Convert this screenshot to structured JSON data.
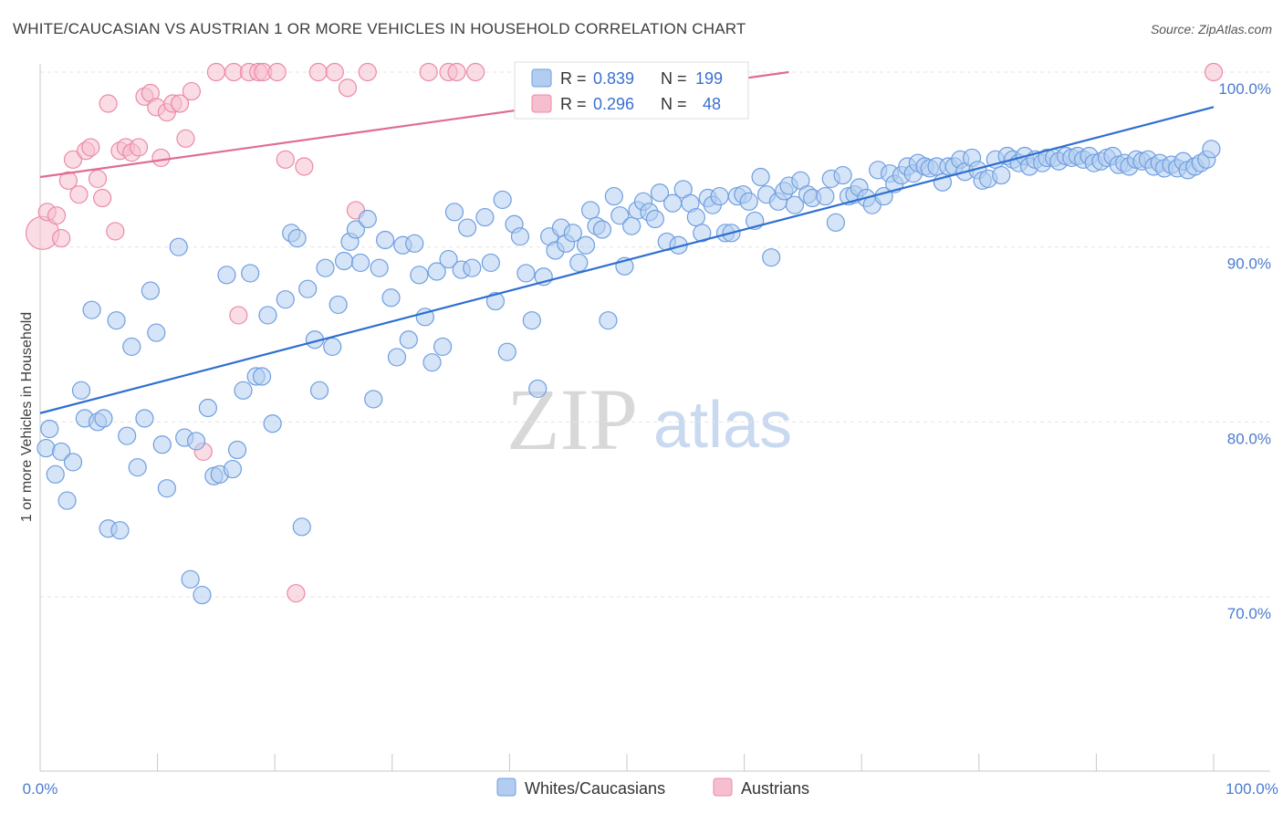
{
  "title": "WHITE/CAUCASIAN VS AUSTRIAN 1 OR MORE VEHICLES IN HOUSEHOLD CORRELATION CHART",
  "source": "Source: ZipAtlas.com",
  "watermark": {
    "zip": "ZIP",
    "atlas": "atlas"
  },
  "chart_data": {
    "type": "scatter",
    "title": "WHITE/CAUCASIAN VS AUSTRIAN 1 OR MORE VEHICLES IN HOUSEHOLD CORRELATION CHART",
    "ylabel": "1 or more Vehicles in Household",
    "xlabel": "",
    "xlim": [
      0,
      100
    ],
    "ylim": [
      60,
      102
    ],
    "x_tick_labels": [
      "0.0%",
      "100.0%"
    ],
    "y_tick_labels": [
      {
        "value": 100,
        "label": "100.0%"
      },
      {
        "value": 90,
        "label": "90.0%"
      },
      {
        "value": 80,
        "label": "80.0%"
      },
      {
        "value": 70,
        "label": "70.0%"
      }
    ],
    "grid": true,
    "legend_placement": "top-center",
    "legend": [
      {
        "r_label": "R =",
        "r": "0.839",
        "n_label": "N =",
        "n": "199"
      },
      {
        "r_label": "R =",
        "r": "0.296",
        "n_label": "N =",
        "n": "48"
      }
    ],
    "series": [
      {
        "name": "Whites/Caucasians",
        "color": "#6f9ee0",
        "fill": "#b3cdf0",
        "trend": {
          "x": [
            0,
            100
          ],
          "y": [
            80.5,
            98.0
          ],
          "color": "#2d6fd0"
        },
        "points": [
          [
            0.5,
            78.5
          ],
          [
            0.8,
            79.6
          ],
          [
            1.3,
            77.0
          ],
          [
            1.8,
            78.3
          ],
          [
            2.3,
            75.5
          ],
          [
            2.8,
            77.7
          ],
          [
            3.5,
            81.8
          ],
          [
            3.8,
            80.2
          ],
          [
            4.4,
            86.4
          ],
          [
            4.9,
            80.0
          ],
          [
            5.4,
            80.2
          ],
          [
            5.8,
            73.9
          ],
          [
            6.5,
            85.8
          ],
          [
            6.8,
            73.8
          ],
          [
            7.4,
            79.2
          ],
          [
            7.8,
            84.3
          ],
          [
            8.3,
            77.4
          ],
          [
            8.9,
            80.2
          ],
          [
            9.4,
            87.5
          ],
          [
            9.9,
            85.1
          ],
          [
            10.4,
            78.7
          ],
          [
            10.8,
            76.2
          ],
          [
            11.8,
            90.0
          ],
          [
            12.3,
            79.1
          ],
          [
            12.8,
            71.0
          ],
          [
            13.3,
            78.9
          ],
          [
            13.8,
            70.1
          ],
          [
            14.3,
            80.8
          ],
          [
            14.8,
            76.9
          ],
          [
            15.3,
            77.0
          ],
          [
            15.9,
            88.4
          ],
          [
            16.4,
            77.3
          ],
          [
            16.8,
            78.4
          ],
          [
            17.3,
            81.8
          ],
          [
            17.9,
            88.5
          ],
          [
            18.4,
            82.6
          ],
          [
            18.9,
            82.6
          ],
          [
            19.4,
            86.1
          ],
          [
            19.8,
            79.9
          ],
          [
            20.9,
            87.0
          ],
          [
            21.4,
            90.8
          ],
          [
            21.9,
            90.5
          ],
          [
            22.3,
            74.0
          ],
          [
            22.8,
            87.6
          ],
          [
            23.4,
            84.7
          ],
          [
            23.8,
            81.8
          ],
          [
            24.3,
            88.8
          ],
          [
            24.9,
            84.3
          ],
          [
            25.4,
            86.7
          ],
          [
            25.9,
            89.2
          ],
          [
            26.4,
            90.3
          ],
          [
            26.9,
            91.0
          ],
          [
            27.3,
            89.1
          ],
          [
            27.9,
            91.6
          ],
          [
            28.4,
            81.3
          ],
          [
            28.9,
            88.8
          ],
          [
            29.4,
            90.4
          ],
          [
            29.9,
            87.1
          ],
          [
            30.4,
            83.7
          ],
          [
            30.9,
            90.1
          ],
          [
            31.4,
            84.7
          ],
          [
            31.9,
            90.2
          ],
          [
            32.3,
            88.4
          ],
          [
            32.8,
            86.0
          ],
          [
            33.4,
            83.4
          ],
          [
            33.8,
            88.6
          ],
          [
            34.3,
            84.3
          ],
          [
            34.8,
            89.3
          ],
          [
            35.3,
            92.0
          ],
          [
            35.9,
            88.7
          ],
          [
            36.4,
            91.1
          ],
          [
            36.8,
            88.8
          ],
          [
            37.9,
            91.7
          ],
          [
            38.4,
            89.1
          ],
          [
            38.8,
            86.9
          ],
          [
            39.4,
            92.7
          ],
          [
            39.8,
            84.0
          ],
          [
            40.4,
            91.3
          ],
          [
            40.9,
            90.6
          ],
          [
            41.4,
            88.5
          ],
          [
            41.9,
            85.8
          ],
          [
            42.4,
            81.9
          ],
          [
            42.9,
            88.3
          ],
          [
            43.4,
            90.6
          ],
          [
            43.9,
            89.8
          ],
          [
            44.4,
            91.1
          ],
          [
            44.8,
            90.2
          ],
          [
            45.4,
            90.8
          ],
          [
            45.9,
            89.1
          ],
          [
            46.5,
            90.1
          ],
          [
            46.9,
            92.1
          ],
          [
            47.4,
            91.2
          ],
          [
            47.9,
            91.0
          ],
          [
            48.4,
            85.8
          ],
          [
            48.9,
            92.9
          ],
          [
            49.4,
            91.8
          ],
          [
            49.8,
            88.9
          ],
          [
            50.4,
            91.2
          ],
          [
            50.9,
            92.1
          ],
          [
            51.4,
            92.6
          ],
          [
            51.9,
            92.0
          ],
          [
            52.4,
            91.6
          ],
          [
            52.8,
            93.1
          ],
          [
            53.4,
            90.3
          ],
          [
            53.9,
            92.5
          ],
          [
            54.4,
            90.1
          ],
          [
            54.8,
            93.3
          ],
          [
            55.4,
            92.5
          ],
          [
            55.9,
            91.7
          ],
          [
            56.4,
            90.8
          ],
          [
            56.9,
            92.8
          ],
          [
            57.3,
            92.4
          ],
          [
            57.9,
            92.9
          ],
          [
            58.4,
            90.8
          ],
          [
            58.9,
            90.8
          ],
          [
            59.4,
            92.9
          ],
          [
            59.9,
            93.0
          ],
          [
            60.4,
            92.6
          ],
          [
            60.9,
            91.5
          ],
          [
            61.4,
            94.0
          ],
          [
            61.9,
            93.0
          ],
          [
            62.3,
            89.4
          ],
          [
            62.9,
            92.6
          ],
          [
            63.4,
            93.2
          ],
          [
            63.8,
            93.5
          ],
          [
            64.3,
            92.4
          ],
          [
            64.8,
            93.8
          ],
          [
            65.4,
            93.0
          ],
          [
            65.8,
            92.8
          ],
          [
            66.9,
            92.9
          ],
          [
            67.4,
            93.9
          ],
          [
            67.8,
            91.4
          ],
          [
            68.4,
            94.1
          ],
          [
            68.9,
            92.9
          ],
          [
            69.4,
            93.0
          ],
          [
            69.8,
            93.4
          ],
          [
            70.4,
            92.8
          ],
          [
            70.9,
            92.4
          ],
          [
            71.4,
            94.4
          ],
          [
            71.9,
            92.9
          ],
          [
            72.4,
            94.2
          ],
          [
            72.8,
            93.6
          ],
          [
            73.4,
            94.1
          ],
          [
            73.9,
            94.6
          ],
          [
            74.4,
            94.2
          ],
          [
            74.8,
            94.8
          ],
          [
            75.4,
            94.6
          ],
          [
            75.8,
            94.5
          ],
          [
            76.4,
            94.6
          ],
          [
            76.9,
            93.7
          ],
          [
            77.4,
            94.6
          ],
          [
            77.9,
            94.6
          ],
          [
            78.4,
            95.0
          ],
          [
            78.8,
            94.3
          ],
          [
            79.4,
            95.1
          ],
          [
            79.9,
            94.4
          ],
          [
            80.3,
            93.8
          ],
          [
            80.8,
            93.9
          ],
          [
            81.4,
            95.0
          ],
          [
            81.9,
            94.1
          ],
          [
            82.4,
            95.2
          ],
          [
            82.9,
            95.0
          ],
          [
            83.4,
            94.8
          ],
          [
            83.9,
            95.2
          ],
          [
            84.3,
            94.6
          ],
          [
            84.8,
            95.0
          ],
          [
            85.4,
            94.8
          ],
          [
            85.8,
            95.1
          ],
          [
            86.4,
            95.1
          ],
          [
            86.8,
            94.9
          ],
          [
            87.4,
            95.2
          ],
          [
            87.9,
            95.1
          ],
          [
            88.4,
            95.2
          ],
          [
            88.9,
            95.0
          ],
          [
            89.4,
            95.2
          ],
          [
            89.8,
            94.8
          ],
          [
            90.4,
            94.9
          ],
          [
            90.9,
            95.1
          ],
          [
            91.4,
            95.2
          ],
          [
            91.9,
            94.7
          ],
          [
            92.4,
            94.8
          ],
          [
            92.8,
            94.6
          ],
          [
            93.4,
            95.0
          ],
          [
            93.9,
            94.9
          ],
          [
            94.4,
            95.0
          ],
          [
            94.9,
            94.6
          ],
          [
            95.4,
            94.8
          ],
          [
            95.8,
            94.5
          ],
          [
            96.4,
            94.7
          ],
          [
            96.9,
            94.5
          ],
          [
            97.4,
            94.9
          ],
          [
            97.8,
            94.4
          ],
          [
            98.4,
            94.6
          ],
          [
            98.9,
            94.8
          ],
          [
            99.4,
            95.0
          ],
          [
            99.8,
            95.6
          ]
        ]
      },
      {
        "name": "Austrians",
        "color": "#eb8aa8",
        "fill": "#f6bfd0",
        "trend": {
          "x": [
            0,
            63.8
          ],
          "y": [
            94.0,
            100.0
          ],
          "color": "#e06c92"
        },
        "points": [
          [
            0.2,
            90.8
          ],
          [
            0.6,
            92.0
          ],
          [
            1.4,
            91.8
          ],
          [
            1.8,
            90.5
          ],
          [
            2.4,
            93.8
          ],
          [
            2.8,
            95.0
          ],
          [
            3.3,
            93.0
          ],
          [
            3.9,
            95.5
          ],
          [
            4.3,
            95.7
          ],
          [
            4.9,
            93.9
          ],
          [
            5.3,
            92.8
          ],
          [
            5.8,
            98.2
          ],
          [
            6.4,
            90.9
          ],
          [
            6.8,
            95.5
          ],
          [
            7.3,
            95.7
          ],
          [
            7.8,
            95.4
          ],
          [
            8.4,
            95.7
          ],
          [
            8.9,
            98.6
          ],
          [
            9.4,
            98.8
          ],
          [
            9.9,
            98.0
          ],
          [
            10.3,
            95.1
          ],
          [
            10.8,
            97.7
          ],
          [
            11.3,
            98.2
          ],
          [
            11.9,
            98.2
          ],
          [
            12.4,
            96.2
          ],
          [
            12.9,
            98.9
          ],
          [
            13.9,
            78.3
          ],
          [
            15.0,
            100.0
          ],
          [
            16.5,
            100.0
          ],
          [
            16.9,
            86.1
          ],
          [
            17.8,
            100.0
          ],
          [
            18.6,
            100.0
          ],
          [
            19.0,
            100.0
          ],
          [
            20.2,
            100.0
          ],
          [
            20.9,
            95.0
          ],
          [
            21.8,
            70.2
          ],
          [
            22.5,
            94.6
          ],
          [
            23.7,
            100.0
          ],
          [
            25.1,
            100.0
          ],
          [
            26.2,
            99.1
          ],
          [
            26.9,
            92.1
          ],
          [
            27.9,
            100.0
          ],
          [
            33.1,
            100.0
          ],
          [
            34.8,
            100.0
          ],
          [
            35.5,
            100.0
          ],
          [
            37.1,
            100.0
          ],
          [
            56.6,
            100.0
          ],
          [
            100.0,
            100.0
          ]
        ]
      }
    ]
  }
}
